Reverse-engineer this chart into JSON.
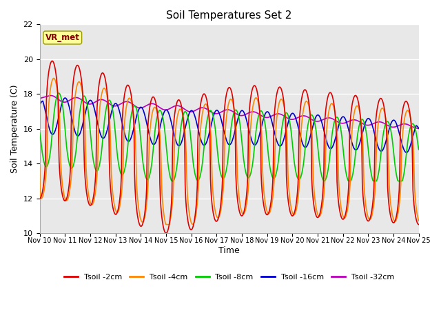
{
  "title": "Soil Temperatures Set 2",
  "xlabel": "Time",
  "ylabel": "Soil Temperature (C)",
  "annotation": "VR_met",
  "ylim": [
    10,
    22
  ],
  "yticks": [
    10,
    12,
    14,
    16,
    18,
    20,
    22
  ],
  "series": {
    "Tsoil -2cm": {
      "color": "#dd0000",
      "lw": 1.2
    },
    "Tsoil -4cm": {
      "color": "#ff8800",
      "lw": 1.2
    },
    "Tsoil -8cm": {
      "color": "#00cc00",
      "lw": 1.2
    },
    "Tsoil -16cm": {
      "color": "#0000cc",
      "lw": 1.2
    },
    "Tsoil -32cm": {
      "color": "#bb00bb",
      "lw": 1.2
    }
  },
  "bg_color": "#e8e8e8",
  "fig_bg": "#ffffff"
}
